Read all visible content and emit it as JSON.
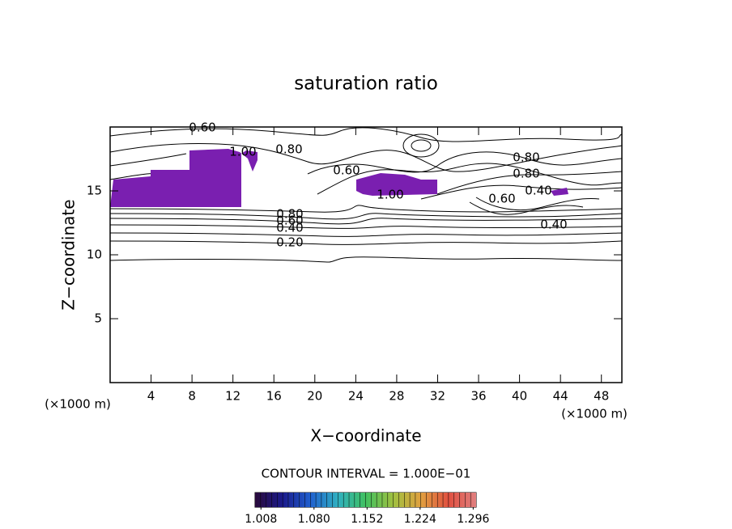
{
  "chart_data": {
    "type": "contour",
    "title": "saturation ratio",
    "x_label": "X−coordinate",
    "y_label": "Z−coordinate",
    "x_unit_left": "(×1000 m)",
    "x_unit_right": "(×1000 m)",
    "xlim": [
      0,
      50
    ],
    "ylim": [
      0,
      20
    ],
    "xticks": [
      4,
      8,
      12,
      16,
      20,
      24,
      28,
      32,
      36,
      40,
      44,
      48
    ],
    "yticks": [
      5,
      10,
      15
    ],
    "contour_labels": [
      "0.60",
      "1.00",
      "0.80",
      "0.60",
      "1.00",
      "0.80",
      "0.80",
      "0.60",
      "0.40",
      "0.80",
      "0.60",
      "0.40",
      "0.20",
      "0.40"
    ],
    "contour_interval": "CONTOUR INTERVAL = 1.000E−01",
    "colorbar": {
      "lim": [
        1.0,
        1.3
      ],
      "ticks": [
        {
          "value": 1.008,
          "label": "1.008"
        },
        {
          "value": 1.08,
          "label": "1.080"
        },
        {
          "value": 1.152,
          "label": "1.152"
        },
        {
          "value": 1.224,
          "label": "1.224"
        },
        {
          "value": 1.296,
          "label": "1.296"
        }
      ],
      "colors": [
        "#2a0a3a",
        "#1a1a8c",
        "#2060d0",
        "#30b0c0",
        "#40c060",
        "#a0c040",
        "#e0a040",
        "#e05040",
        "#e08080"
      ]
    },
    "fill_color": "#7a1fb0"
  }
}
